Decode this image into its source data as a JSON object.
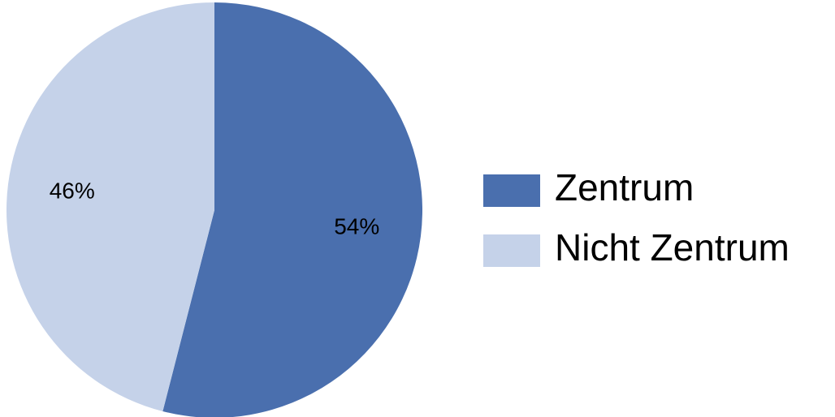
{
  "chart_data": {
    "type": "pie",
    "categories": [
      "Zentrum",
      "Nicht Zentrum"
    ],
    "values": [
      54,
      46
    ],
    "value_labels": [
      "54%",
      "46%"
    ],
    "colors": [
      "#4a6fae",
      "#c5d2e9"
    ],
    "legend": "right"
  }
}
